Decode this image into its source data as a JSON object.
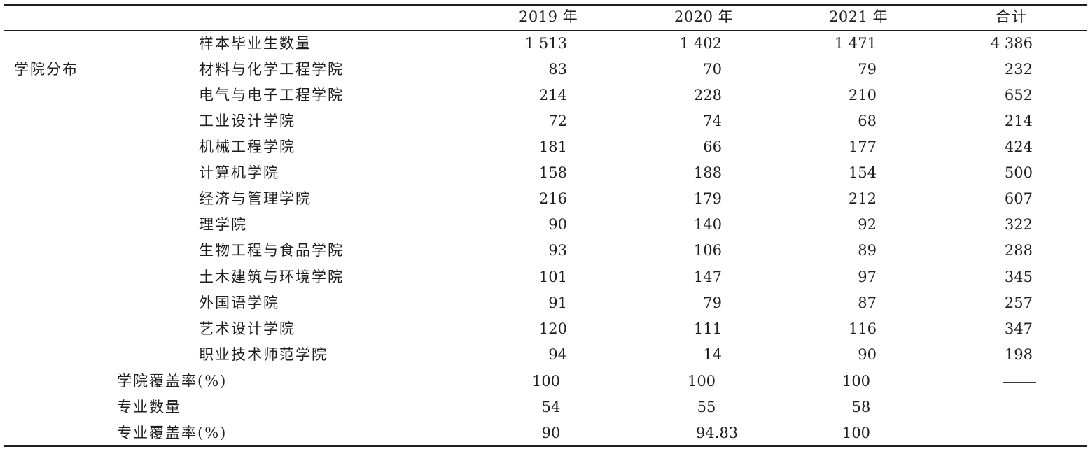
{
  "table": {
    "headers": [
      "",
      "",
      "2019 年",
      "2020 年",
      "2021 年",
      "合计"
    ],
    "group_label": "学院分布",
    "sample_row": {
      "label": "样本毕业生数量",
      "values": [
        "1 513",
        "1 402",
        "1 471",
        "4 386"
      ]
    },
    "college_rows": [
      {
        "label": "材料与化学工程学院",
        "values": [
          "83",
          "70",
          "79",
          "232"
        ]
      },
      {
        "label": "电气与电子工程学院",
        "values": [
          "214",
          "228",
          "210",
          "652"
        ]
      },
      {
        "label": "工业设计学院",
        "values": [
          "72",
          "74",
          "68",
          "214"
        ]
      },
      {
        "label": "机械工程学院",
        "values": [
          "181",
          "66",
          "177",
          "424"
        ]
      },
      {
        "label": "计算机学院",
        "values": [
          "158",
          "188",
          "154",
          "500"
        ]
      },
      {
        "label": "经济与管理学院",
        "values": [
          "216",
          "179",
          "212",
          "607"
        ]
      },
      {
        "label": "理学院",
        "values": [
          "90",
          "140",
          "92",
          "322"
        ]
      },
      {
        "label": "生物工程与食品学院",
        "values": [
          "93",
          "106",
          "89",
          "288"
        ]
      },
      {
        "label": "土木建筑与环境学院",
        "values": [
          "101",
          "147",
          "97",
          "345"
        ]
      },
      {
        "label": "外国语学院",
        "values": [
          "91",
          "79",
          "87",
          "257"
        ]
      },
      {
        "label": "艺术设计学院",
        "values": [
          "120",
          "111",
          "116",
          "347"
        ]
      },
      {
        "label": "职业技术师范学院",
        "values": [
          "94",
          "14",
          "90",
          "198"
        ]
      }
    ],
    "summary_rows": [
      {
        "label": "学院覆盖率(%)",
        "values": [
          "100",
          "100",
          "100"
        ],
        "total": "——"
      },
      {
        "label": "专业数量",
        "values": [
          "54",
          "55",
          "58"
        ],
        "total": "——"
      },
      {
        "label": "专业覆盖率(%)",
        "values": [
          "90",
          "94.83",
          "100"
        ],
        "total": "——"
      }
    ]
  }
}
